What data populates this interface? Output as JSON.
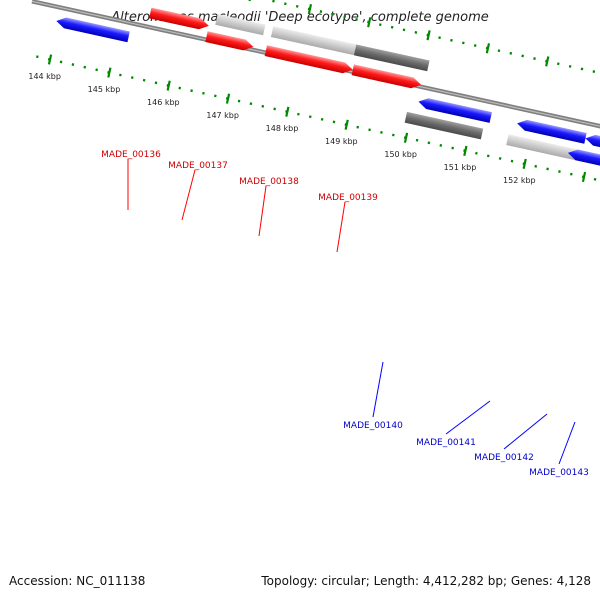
{
  "title": "Alteromonas macleodii 'Deep ecotype', complete genome",
  "footer": {
    "accession": "Accession: NC_011138",
    "topology": "Topology: circular; Length: 4,412,282 bp; Genes: 4,128"
  },
  "colors": {
    "forward_gene": "#ff0000",
    "reverse_gene": "#0000ff",
    "light_feature": "#c0c0c0",
    "dark_feature": "#6e6e6e",
    "backbone": "#808080",
    "ticks": "#008800",
    "forward_label": "#cc0000",
    "reverse_label": "#0000cc"
  },
  "scale": {
    "unit_label": "kbp",
    "ticks": [
      "144 kbp",
      "145 kbp",
      "146 kbp",
      "147 kbp",
      "148 kbp",
      "149 kbp",
      "150 kbp",
      "151 kbp",
      "152 kbp"
    ]
  },
  "forward_labels": [
    "MADE_00136",
    "MADE_00137",
    "MADE_00138",
    "MADE_00139"
  ],
  "reverse_labels": [
    "MADE_00140",
    "MADE_00141",
    "MADE_00142",
    "MADE_00143"
  ]
}
